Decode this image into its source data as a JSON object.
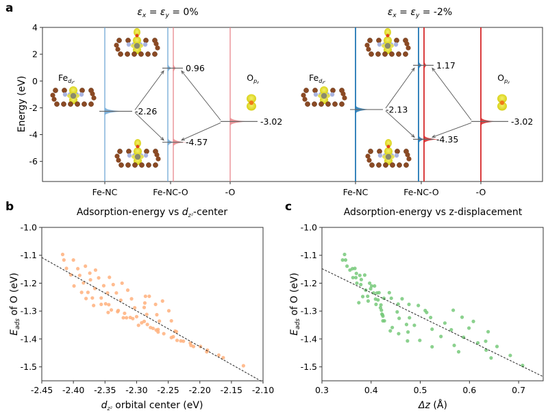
{
  "figure": {
    "panel_labels": [
      "a",
      "b",
      "c"
    ]
  },
  "chart_data": [
    {
      "type": "line",
      "panel": "a",
      "subtitle_left": {
        "eps": "ε",
        "x": "x",
        "y": "y",
        "text": " = 0%"
      },
      "subtitle_right": {
        "eps": "ε",
        "x": "x",
        "y": "y",
        "text": " = -2%"
      },
      "ylabel": "Energy (eV)",
      "ylim": [
        -7.5,
        4
      ],
      "yticks": [
        4,
        2,
        0,
        -2,
        -4,
        -6
      ],
      "ytick_labels": [
        "4",
        "2",
        "0",
        "-2",
        "-4",
        "-6"
      ],
      "grid": false,
      "column_labels": [
        "Fe-NC",
        "Fe-NC-O",
        "-O"
      ],
      "inset_labels": {
        "fe": "Fe",
        "fe_sub": "d",
        "fe_sub2": "z²",
        "o": "O",
        "o_sub": "p",
        "o_sub2": "z"
      },
      "cases": [
        {
          "name": "εx = εy = 0%",
          "color_fe": "#6fa8d6",
          "color_o": "#e8868b",
          "levels": {
            "fe_nc": -2.26,
            "bonding": -4.57,
            "antibonding": 0.96,
            "o": -3.02
          },
          "level_labels": {
            "fe_nc": "-2.26",
            "bonding": "-4.57",
            "antibonding": "0.96",
            "o": "-3.02"
          }
        },
        {
          "name": "εx = εy = -2%",
          "color_fe": "#1f77b4",
          "color_o": "#d62728",
          "levels": {
            "fe_nc": -2.13,
            "bonding": -4.35,
            "antibonding": 1.17,
            "o": -3.02
          },
          "level_labels": {
            "fe_nc": "-2.13",
            "bonding": "-4.35",
            "antibonding": "1.17",
            "o": "-3.02"
          }
        }
      ]
    },
    {
      "type": "scatter",
      "panel": "b",
      "title_pre": "Adsorption-energy vs ",
      "title_var": "d",
      "title_sub": "z²",
      "title_post": "-center",
      "xlabel_var": "d",
      "xlabel_sub": "z²",
      "xlabel_post": " orbital center (eV)",
      "ylabel_pre": "E",
      "ylabel_sub": "ads",
      "ylabel_post": " of O (eV)",
      "xlim": [
        -2.45,
        -2.1
      ],
      "ylim": [
        -1.55,
        -1.0
      ],
      "xticks": [
        -2.45,
        -2.4,
        -2.35,
        -2.3,
        -2.25,
        -2.2,
        -2.15,
        -2.1
      ],
      "xtick_labels": [
        "-2.45",
        "-2.40",
        "-2.35",
        "-2.30",
        "-2.25",
        "-2.20",
        "-2.15",
        "-2.10"
      ],
      "yticks": [
        -1.0,
        -1.1,
        -1.2,
        -1.3,
        -1.4,
        -1.5
      ],
      "ytick_labels": [
        "-1.0",
        "-1.1",
        "-1.2",
        "-1.3",
        "-1.4",
        "-1.5"
      ],
      "grid": false,
      "color": "#ffb07c",
      "fit": {
        "x": [
          -2.45,
          -2.1
        ],
        "y": [
          -1.108,
          -1.555
        ],
        "style": "dashed",
        "color": "#222222"
      },
      "points": [
        [
          -2.417,
          -1.097
        ],
        [
          -2.415,
          -1.117
        ],
        [
          -2.411,
          -1.147
        ],
        [
          -2.404,
          -1.17
        ],
        [
          -2.4,
          -1.117
        ],
        [
          -2.399,
          -1.21
        ],
        [
          -2.393,
          -1.148
        ],
        [
          -2.39,
          -1.172
        ],
        [
          -2.387,
          -1.233
        ],
        [
          -2.384,
          -1.199
        ],
        [
          -2.381,
          -1.139
        ],
        [
          -2.38,
          -1.255
        ],
        [
          -2.377,
          -1.233
        ],
        [
          -2.374,
          -1.164
        ],
        [
          -2.373,
          -1.188
        ],
        [
          -2.37,
          -1.253
        ],
        [
          -2.368,
          -1.28
        ],
        [
          -2.366,
          -1.219
        ],
        [
          -2.365,
          -1.153
        ],
        [
          -2.36,
          -1.181
        ],
        [
          -2.356,
          -1.253
        ],
        [
          -2.356,
          -1.276
        ],
        [
          -2.352,
          -1.209
        ],
        [
          -2.349,
          -1.274
        ],
        [
          -2.346,
          -1.235
        ],
        [
          -2.345,
          -1.305
        ],
        [
          -2.344,
          -1.277
        ],
        [
          -2.343,
          -1.179
        ],
        [
          -2.34,
          -1.296
        ],
        [
          -2.337,
          -1.205
        ],
        [
          -2.332,
          -1.235
        ],
        [
          -2.33,
          -1.302
        ],
        [
          -2.329,
          -1.298
        ],
        [
          -2.325,
          -1.261
        ],
        [
          -2.323,
          -1.2
        ],
        [
          -2.321,
          -1.324
        ],
        [
          -2.319,
          -1.308
        ],
        [
          -2.316,
          -1.324
        ],
        [
          -2.314,
          -1.225
        ],
        [
          -2.31,
          -1.323
        ],
        [
          -2.308,
          -1.256
        ],
        [
          -2.306,
          -1.327
        ],
        [
          -2.303,
          -1.288
        ],
        [
          -2.3,
          -1.32
        ],
        [
          -2.297,
          -1.351
        ],
        [
          -2.292,
          -1.342
        ],
        [
          -2.288,
          -1.337
        ],
        [
          -2.288,
          -1.287
        ],
        [
          -2.287,
          -1.271
        ],
        [
          -2.286,
          -1.247
        ],
        [
          -2.284,
          -1.312
        ],
        [
          -2.283,
          -1.348
        ],
        [
          -2.28,
          -1.247
        ],
        [
          -2.278,
          -1.359
        ],
        [
          -2.274,
          -1.362
        ],
        [
          -2.27,
          -1.276
        ],
        [
          -2.269,
          -1.368
        ],
        [
          -2.268,
          -1.313
        ],
        [
          -2.266,
          -1.375
        ],
        [
          -2.266,
          -1.366
        ],
        [
          -2.264,
          -1.336
        ],
        [
          -2.259,
          -1.264
        ],
        [
          -2.257,
          -1.381
        ],
        [
          -2.249,
          -1.299
        ],
        [
          -2.245,
          -1.335
        ],
        [
          -2.245,
          -1.395
        ],
        [
          -2.242,
          -1.392
        ],
        [
          -2.239,
          -1.372
        ],
        [
          -2.237,
          -1.374
        ],
        [
          -2.236,
          -1.405
        ],
        [
          -2.23,
          -1.407
        ],
        [
          -2.226,
          -1.408
        ],
        [
          -2.215,
          -1.415
        ],
        [
          -2.214,
          -1.423
        ],
        [
          -2.21,
          -1.427
        ],
        [
          -2.199,
          -1.427
        ],
        [
          -2.189,
          -1.446
        ],
        [
          -2.188,
          -1.44
        ],
        [
          -2.17,
          -1.458
        ],
        [
          -2.163,
          -1.467
        ],
        [
          -2.131,
          -1.496
        ]
      ]
    },
    {
      "type": "scatter",
      "panel": "c",
      "title": "Adsorption-energy vs z-displacement",
      "xlabel_var": "Δz",
      "xlabel_post": " (Å)",
      "ylabel_pre": "E",
      "ylabel_sub": "ads",
      "ylabel_post": " of O (eV)",
      "xlim": [
        0.3,
        0.75
      ],
      "ylim": [
        -1.55,
        -1.0
      ],
      "xticks": [
        0.3,
        0.4,
        0.5,
        0.6,
        0.7
      ],
      "xtick_labels": [
        "0.3",
        "0.4",
        "0.5",
        "0.6",
        "0.7"
      ],
      "yticks": [
        -1.0,
        -1.1,
        -1.2,
        -1.3,
        -1.4,
        -1.5
      ],
      "ytick_labels": [
        "-1.0",
        "-1.1",
        "-1.2",
        "-1.3",
        "-1.4",
        "-1.5"
      ],
      "grid": false,
      "color": "#77c97a",
      "fit": {
        "x": [
          0.3,
          0.75
        ],
        "y": [
          -1.148,
          -1.535
        ],
        "style": "dashed",
        "color": "#222222"
      },
      "points": [
        [
          0.342,
          -1.117
        ],
        [
          0.346,
          -1.097
        ],
        [
          0.348,
          -1.117
        ],
        [
          0.351,
          -1.139
        ],
        [
          0.357,
          -1.153
        ],
        [
          0.362,
          -1.148
        ],
        [
          0.363,
          -1.18
        ],
        [
          0.367,
          -1.147
        ],
        [
          0.369,
          -1.18
        ],
        [
          0.37,
          -1.165
        ],
        [
          0.371,
          -1.2
        ],
        [
          0.375,
          -1.27
        ],
        [
          0.377,
          -1.172
        ],
        [
          0.379,
          -1.205
        ],
        [
          0.38,
          -1.187
        ],
        [
          0.383,
          -1.248
        ],
        [
          0.387,
          -1.171
        ],
        [
          0.389,
          -1.225
        ],
        [
          0.393,
          -1.247
        ],
        [
          0.394,
          -1.264
        ],
        [
          0.397,
          -1.2
        ],
        [
          0.399,
          -1.22
        ],
        [
          0.401,
          -1.21
        ],
        [
          0.405,
          -1.235
        ],
        [
          0.407,
          -1.21
        ],
        [
          0.409,
          -1.257
        ],
        [
          0.41,
          -1.276
        ],
        [
          0.412,
          -1.235
        ],
        [
          0.414,
          -1.26
        ],
        [
          0.416,
          -1.234
        ],
        [
          0.419,
          -1.288
        ],
        [
          0.42,
          -1.278
        ],
        [
          0.421,
          -1.297
        ],
        [
          0.422,
          -1.311
        ],
        [
          0.423,
          -1.313
        ],
        [
          0.424,
          -1.318
        ],
        [
          0.424,
          -1.335
        ],
        [
          0.426,
          -1.254
        ],
        [
          0.427,
          -1.335
        ],
        [
          0.437,
          -1.234
        ],
        [
          0.439,
          -1.371
        ],
        [
          0.441,
          -1.254
        ],
        [
          0.443,
          -1.359
        ],
        [
          0.453,
          -1.303
        ],
        [
          0.455,
          -1.275
        ],
        [
          0.456,
          -1.381
        ],
        [
          0.457,
          -1.326
        ],
        [
          0.463,
          -1.256
        ],
        [
          0.472,
          -1.348
        ],
        [
          0.474,
          -1.407
        ],
        [
          0.475,
          -1.375
        ],
        [
          0.477,
          -1.276
        ],
        [
          0.478,
          -1.324
        ],
        [
          0.488,
          -1.351
        ],
        [
          0.496,
          -1.28
        ],
        [
          0.499,
          -1.405
        ],
        [
          0.51,
          -1.298
        ],
        [
          0.513,
          -1.305
        ],
        [
          0.521,
          -1.323
        ],
        [
          0.524,
          -1.365
        ],
        [
          0.524,
          -1.428
        ],
        [
          0.542,
          -1.391
        ],
        [
          0.55,
          -1.343
        ],
        [
          0.563,
          -1.367
        ],
        [
          0.567,
          -1.297
        ],
        [
          0.569,
          -1.423
        ],
        [
          0.578,
          -1.446
        ],
        [
          0.585,
          -1.322
        ],
        [
          0.588,
          -1.394
        ],
        [
          0.599,
          -1.361
        ],
        [
          0.608,
          -1.337
        ],
        [
          0.617,
          -1.414
        ],
        [
          0.633,
          -1.408
        ],
        [
          0.634,
          -1.44
        ],
        [
          0.638,
          -1.374
        ],
        [
          0.644,
          -1.468
        ],
        [
          0.656,
          -1.427
        ],
        [
          0.683,
          -1.459
        ],
        [
          0.708,
          -1.495
        ]
      ]
    }
  ]
}
